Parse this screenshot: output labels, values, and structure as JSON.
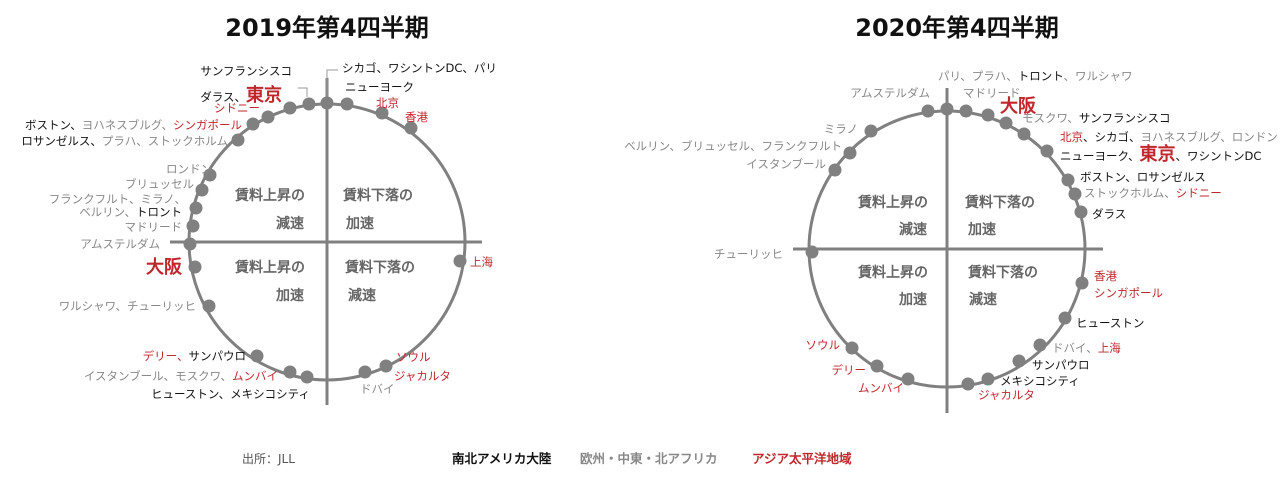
{
  "colors": {
    "americas": "#111111",
    "emea": "#888888",
    "apac": "#c0272d",
    "axis": "#808080",
    "dot": "#808080"
  },
  "source": "出所：JLL",
  "legend": [
    {
      "text": "南北アメリカ大陸",
      "region": "americas"
    },
    {
      "text": "欧州・中東・北アフリカ",
      "region": "emea"
    },
    {
      "text": "アジア太平洋地域",
      "region": "apac"
    }
  ],
  "panels": [
    {
      "title": "2019年第4四半期",
      "quadrants": {
        "top_left": [
          "賃料上昇の",
          "減速"
        ],
        "top_right": [
          "賃料下落の",
          "加速"
        ],
        "bottom_left": [
          "賃料上昇の",
          "加速"
        ],
        "bottom_right": [
          "賃料下落の",
          "減速"
        ]
      },
      "labels": [
        {
          "id": "p1-l1",
          "segments": [
            {
              "t": "シカゴ、ワシントンDC、パリ",
              "r": "americas"
            }
          ]
        },
        {
          "id": "p1-l2",
          "segments": [
            {
              "t": "ニューヨーク",
              "r": "americas"
            }
          ]
        },
        {
          "id": "p1-l3",
          "segments": [
            {
              "t": "北京",
              "r": "apac"
            }
          ]
        },
        {
          "id": "p1-l4",
          "segments": [
            {
              "t": "香港",
              "r": "apac"
            }
          ]
        },
        {
          "id": "p1-l5",
          "segments": [
            {
              "t": "サンフランシスコ",
              "r": "americas"
            }
          ]
        },
        {
          "id": "p1-l6",
          "segments": [
            {
              "t": "ダラス、",
              "r": "americas"
            },
            {
              "t": "東京",
              "r": "apac",
              "big": true
            }
          ]
        },
        {
          "id": "p1-l7",
          "segments": [
            {
              "t": "シドニー",
              "r": "apac"
            }
          ]
        },
        {
          "id": "p1-l8",
          "segments": [
            {
              "t": "ボストン、",
              "r": "americas"
            },
            {
              "t": "ヨハネスブルグ、",
              "r": "emea"
            },
            {
              "t": "シンガポール",
              "r": "apac"
            }
          ]
        },
        {
          "id": "p1-l9",
          "segments": [
            {
              "t": "ロサンゼルス、",
              "r": "americas"
            },
            {
              "t": "プラハ、ストックホルム",
              "r": "emea"
            }
          ]
        },
        {
          "id": "p1-l10",
          "segments": [
            {
              "t": "ロンドン",
              "r": "emea"
            }
          ]
        },
        {
          "id": "p1-l11",
          "segments": [
            {
              "t": "ブリュッセル",
              "r": "emea"
            }
          ]
        },
        {
          "id": "p1-l12",
          "segments": [
            {
              "t": "フランクフルト、ミラノ、",
              "r": "emea"
            }
          ]
        },
        {
          "id": "p1-l13",
          "segments": [
            {
              "t": "ベルリン、",
              "r": "emea"
            },
            {
              "t": "トロント",
              "r": "americas"
            }
          ]
        },
        {
          "id": "p1-l14",
          "segments": [
            {
              "t": "マドリード",
              "r": "emea"
            }
          ]
        },
        {
          "id": "p1-l15",
          "segments": [
            {
              "t": "アムステルダム",
              "r": "emea"
            }
          ]
        },
        {
          "id": "p1-l16",
          "segments": [
            {
              "t": "大阪",
              "r": "apac",
              "big": true
            }
          ]
        },
        {
          "id": "p1-l17",
          "segments": [
            {
              "t": "上海",
              "r": "apac"
            }
          ]
        },
        {
          "id": "p1-l18",
          "segments": [
            {
              "t": "ワルシャワ、チューリッヒ",
              "r": "emea"
            }
          ]
        },
        {
          "id": "p1-l19",
          "segments": [
            {
              "t": "デリー、",
              "r": "apac"
            },
            {
              "t": "サンパウロ",
              "r": "americas"
            }
          ]
        },
        {
          "id": "p1-l20",
          "segments": [
            {
              "t": "イスタンブール、モスクワ、",
              "r": "emea"
            },
            {
              "t": "ムンバイ",
              "r": "apac"
            }
          ]
        },
        {
          "id": "p1-l21",
          "segments": [
            {
              "t": "ヒューストン、メキシコシティ",
              "r": "americas"
            }
          ]
        },
        {
          "id": "p1-l22",
          "segments": [
            {
              "t": "ソウル",
              "r": "apac"
            }
          ]
        },
        {
          "id": "p1-l23",
          "segments": [
            {
              "t": "ジャカルタ",
              "r": "apac"
            }
          ]
        },
        {
          "id": "p1-l24",
          "segments": [
            {
              "t": "ドバイ",
              "r": "emea"
            }
          ]
        }
      ]
    },
    {
      "title": "2020年第4四半期",
      "quadrants": {
        "top_left": [
          "賃料上昇の",
          "減速"
        ],
        "top_right": [
          "賃料下落の",
          "加速"
        ],
        "bottom_left": [
          "賃料上昇の",
          "加速"
        ],
        "bottom_right": [
          "賃料下落の",
          "減速"
        ]
      },
      "labels": [
        {
          "id": "p2-l1",
          "segments": [
            {
              "t": "パリ、プラハ、",
              "r": "emea"
            },
            {
              "t": "トロント",
              "r": "americas"
            },
            {
              "t": "、ワルシャワ",
              "r": "emea"
            }
          ]
        },
        {
          "id": "p2-l2",
          "segments": [
            {
              "t": "マドリード",
              "r": "emea"
            }
          ]
        },
        {
          "id": "p2-l3",
          "segments": [
            {
              "t": "大阪",
              "r": "apac",
              "big": true
            }
          ]
        },
        {
          "id": "p2-l4",
          "segments": [
            {
              "t": "アムステルダム",
              "r": "emea"
            }
          ]
        },
        {
          "id": "p2-l5",
          "segments": [
            {
              "t": "モスクワ、",
              "r": "emea"
            },
            {
              "t": "サンフランシスコ",
              "r": "americas"
            }
          ]
        },
        {
          "id": "p2-l6",
          "segments": [
            {
              "t": "北京",
              "r": "apac"
            },
            {
              "t": "、シカゴ、",
              "r": "americas"
            },
            {
              "t": "ヨハネスブルグ、ロンドン",
              "r": "emea"
            }
          ]
        },
        {
          "id": "p2-l7",
          "segments": [
            {
              "t": "ニューヨーク、",
              "r": "americas"
            },
            {
              "t": "東京",
              "r": "apac",
              "big": true
            },
            {
              "t": "、ワシントンDC",
              "r": "americas"
            }
          ]
        },
        {
          "id": "p2-l8",
          "segments": [
            {
              "t": "ミラノ",
              "r": "emea"
            }
          ]
        },
        {
          "id": "p2-l9",
          "segments": [
            {
              "t": "ベルリン、ブリュッセル、フランクフルト",
              "r": "emea"
            }
          ]
        },
        {
          "id": "p2-l10",
          "segments": [
            {
              "t": "イスタンブール",
              "r": "emea"
            }
          ]
        },
        {
          "id": "p2-l11",
          "segments": [
            {
              "t": "ボストン、ロサンゼルス",
              "r": "americas"
            }
          ]
        },
        {
          "id": "p2-l12",
          "segments": [
            {
              "t": "ストックホルム、",
              "r": "emea"
            },
            {
              "t": "シドニー",
              "r": "apac"
            }
          ]
        },
        {
          "id": "p2-l13",
          "segments": [
            {
              "t": "ダラス",
              "r": "americas"
            }
          ]
        },
        {
          "id": "p2-l14",
          "segments": [
            {
              "t": "チューリッヒ",
              "r": "emea"
            }
          ]
        },
        {
          "id": "p2-l15",
          "segments": [
            {
              "t": "香港",
              "r": "apac"
            }
          ]
        },
        {
          "id": "p2-l16",
          "segments": [
            {
              "t": "シンガポール",
              "r": "apac"
            }
          ]
        },
        {
          "id": "p2-l17",
          "segments": [
            {
              "t": "ヒューストン",
              "r": "americas"
            }
          ]
        },
        {
          "id": "p2-l18",
          "segments": [
            {
              "t": "ドバイ、",
              "r": "emea"
            },
            {
              "t": "上海",
              "r": "apac"
            }
          ]
        },
        {
          "id": "p2-l19",
          "segments": [
            {
              "t": "サンパウロ",
              "r": "americas"
            }
          ]
        },
        {
          "id": "p2-l20",
          "segments": [
            {
              "t": "メキシコシティ",
              "r": "americas"
            }
          ]
        },
        {
          "id": "p2-l21",
          "segments": [
            {
              "t": "ジャカルタ",
              "r": "apac"
            }
          ]
        },
        {
          "id": "p2-l22",
          "segments": [
            {
              "t": "ソウル",
              "r": "apac"
            }
          ]
        },
        {
          "id": "p2-l23",
          "segments": [
            {
              "t": "デリー",
              "r": "apac"
            }
          ]
        },
        {
          "id": "p2-l24",
          "segments": [
            {
              "t": "ムンバイ",
              "r": "apac"
            }
          ]
        }
      ]
    }
  ]
}
